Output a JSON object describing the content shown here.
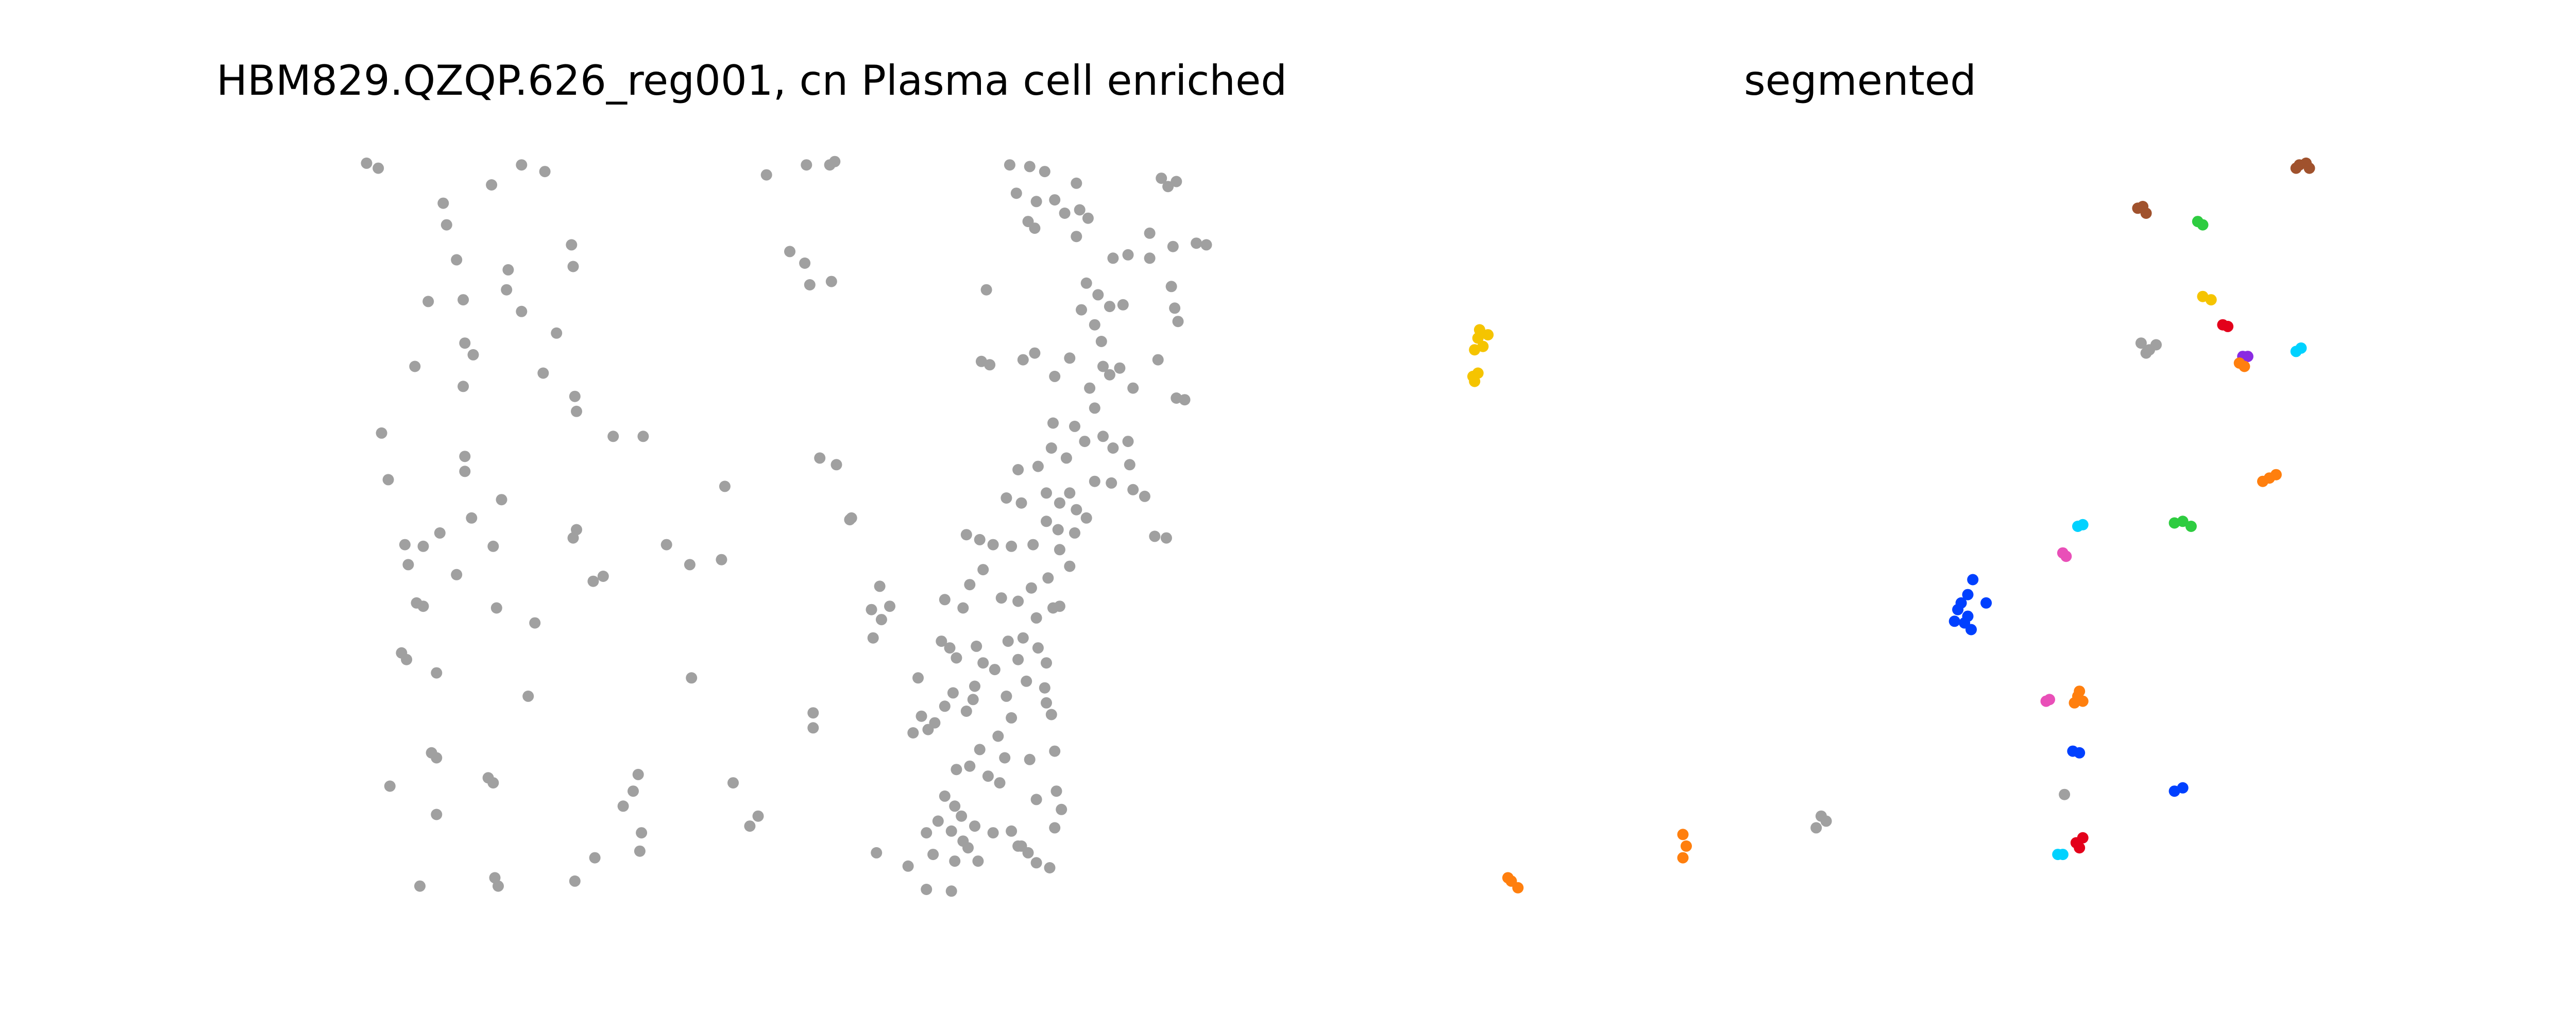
{
  "chart_data": [
    {
      "type": "scatter",
      "title": "HBM829.QZQP.626_reg001, cn Plasma cell enriched",
      "xlabel": "",
      "ylabel": "",
      "axes": "off",
      "grid": false,
      "color": "#a0a0a0",
      "points": [
        [
          220,
          98
        ],
        [
          227,
          101
        ],
        [
          295,
          111
        ],
        [
          313,
          99
        ],
        [
          327,
          103
        ],
        [
          460,
          105
        ],
        [
          484,
          99
        ],
        [
          498,
          99
        ],
        [
          501,
          97
        ],
        [
          266,
          122
        ],
        [
          268,
          135
        ],
        [
          274,
          156
        ],
        [
          305,
          162
        ],
        [
          304,
          174
        ],
        [
          313,
          187
        ],
        [
          343,
          147
        ],
        [
          344,
          160
        ],
        [
          257,
          181
        ],
        [
          278,
          180
        ],
        [
          279,
          206
        ],
        [
          284,
          213
        ],
        [
          278,
          232
        ],
        [
          334,
          200
        ],
        [
          326,
          224
        ],
        [
          345,
          238
        ],
        [
          346,
          247
        ],
        [
          249,
          220
        ],
        [
          229,
          260
        ],
        [
          233,
          288
        ],
        [
          279,
          274
        ],
        [
          279,
          283
        ],
        [
          301,
          300
        ],
        [
          264,
          320
        ],
        [
          243,
          327
        ],
        [
          245,
          339
        ],
        [
          254,
          328
        ],
        [
          274,
          345
        ],
        [
          283,
          311
        ],
        [
          296,
          328
        ],
        [
          346,
          318
        ],
        [
          344,
          323
        ],
        [
          362,
          346
        ],
        [
          356,
          349
        ],
        [
          368,
          262
        ],
        [
          386,
          262
        ],
        [
          250,
          362
        ],
        [
          254,
          364
        ],
        [
          298,
          365
        ],
        [
          321,
          374
        ],
        [
          241,
          392
        ],
        [
          244,
          396
        ],
        [
          262,
          404
        ],
        [
          317,
          418
        ],
        [
          415,
          407
        ],
        [
          433,
          336
        ],
        [
          414,
          339
        ],
        [
          400,
          327
        ],
        [
          435,
          292
        ],
        [
          474,
          151
        ],
        [
          483,
          158
        ],
        [
          486,
          171
        ],
        [
          499,
          169
        ],
        [
          592,
          174
        ],
        [
          492,
          275
        ],
        [
          502,
          279
        ],
        [
          511,
          311
        ],
        [
          488,
          428
        ],
        [
          488,
          437
        ],
        [
          259,
          452
        ],
        [
          262,
          455
        ],
        [
          234,
          472
        ],
        [
          262,
          489
        ],
        [
          293,
          467
        ],
        [
          296,
          470
        ],
        [
          383,
          465
        ],
        [
          380,
          475
        ],
        [
          374,
          484
        ],
        [
          385,
          500
        ],
        [
          384,
          511
        ],
        [
          357,
          515
        ],
        [
          345,
          529
        ],
        [
          297,
          527
        ],
        [
          299,
          532
        ],
        [
          252,
          532
        ],
        [
          455,
          490
        ],
        [
          450,
          496
        ],
        [
          440,
          470
        ],
        [
          526,
          512
        ],
        [
          545,
          520
        ],
        [
          571,
          535
        ],
        [
          606,
          99
        ],
        [
          618,
          100
        ],
        [
          627,
          103
        ],
        [
          646,
          110
        ],
        [
          610,
          116
        ],
        [
          622,
          121
        ],
        [
          633,
          120
        ],
        [
          617,
          133
        ],
        [
          621,
          137
        ],
        [
          639,
          128
        ],
        [
          648,
          126
        ],
        [
          653,
          131
        ],
        [
          697,
          107
        ],
        [
          701,
          112
        ],
        [
          706,
          109
        ],
        [
          646,
          142
        ],
        [
          690,
          140
        ],
        [
          668,
          155
        ],
        [
          677,
          153
        ],
        [
          652,
          170
        ],
        [
          659,
          177
        ],
        [
          666,
          184
        ],
        [
          674,
          183
        ],
        [
          690,
          155
        ],
        [
          704,
          148
        ],
        [
          718,
          146
        ],
        [
          724,
          147
        ],
        [
          703,
          172
        ],
        [
          705,
          185
        ],
        [
          707,
          193
        ],
        [
          649,
          186
        ],
        [
          657,
          195
        ],
        [
          661,
          205
        ],
        [
          621,
          212
        ],
        [
          614,
          216
        ],
        [
          589,
          217
        ],
        [
          594,
          219
        ],
        [
          642,
          215
        ],
        [
          662,
          220
        ],
        [
          666,
          225
        ],
        [
          672,
          221
        ],
        [
          695,
          216
        ],
        [
          680,
          233
        ],
        [
          706,
          239
        ],
        [
          711,
          240
        ],
        [
          633,
          226
        ],
        [
          654,
          233
        ],
        [
          657,
          245
        ],
        [
          645,
          256
        ],
        [
          651,
          265
        ],
        [
          662,
          262
        ],
        [
          668,
          269
        ],
        [
          677,
          265
        ],
        [
          678,
          279
        ],
        [
          632,
          254
        ],
        [
          631,
          269
        ],
        [
          640,
          275
        ],
        [
          623,
          280
        ],
        [
          611,
          282
        ],
        [
          604,
          299
        ],
        [
          613,
          302
        ],
        [
          628,
          296
        ],
        [
          636,
          302
        ],
        [
          646,
          306
        ],
        [
          652,
          311
        ],
        [
          645,
          320
        ],
        [
          635,
          318
        ],
        [
          628,
          313
        ],
        [
          642,
          296
        ],
        [
          657,
          289
        ],
        [
          667,
          290
        ],
        [
          680,
          294
        ],
        [
          687,
          298
        ],
        [
          693,
          322
        ],
        [
          700,
          323
        ],
        [
          510,
          312
        ],
        [
          580,
          321
        ],
        [
          588,
          324
        ],
        [
          596,
          327
        ],
        [
          607,
          328
        ],
        [
          620,
          327
        ],
        [
          636,
          330
        ],
        [
          642,
          340
        ],
        [
          629,
          347
        ],
        [
          619,
          353
        ],
        [
          611,
          361
        ],
        [
          601,
          359
        ],
        [
          590,
          342
        ],
        [
          582,
          351
        ],
        [
          578,
          365
        ],
        [
          567,
          360
        ],
        [
          523,
          366
        ],
        [
          529,
          372
        ],
        [
          534,
          364
        ],
        [
          528,
          352
        ],
        [
          524,
          383
        ],
        [
          551,
          407
        ],
        [
          565,
          385
        ],
        [
          570,
          389
        ],
        [
          574,
          395
        ],
        [
          586,
          388
        ],
        [
          590,
          398
        ],
        [
          597,
          402
        ],
        [
          605,
          385
        ],
        [
          611,
          396
        ],
        [
          614,
          383
        ],
        [
          622,
          371
        ],
        [
          632,
          365
        ],
        [
          636,
          364
        ],
        [
          623,
          389
        ],
        [
          628,
          398
        ],
        [
          616,
          409
        ],
        [
          627,
          413
        ],
        [
          628,
          422
        ],
        [
          631,
          429
        ],
        [
          585,
          412
        ],
        [
          584,
          420
        ],
        [
          580,
          427
        ],
        [
          572,
          416
        ],
        [
          567,
          424
        ],
        [
          561,
          434
        ],
        [
          557,
          438
        ],
        [
          548,
          440
        ],
        [
          553,
          430
        ],
        [
          604,
          418
        ],
        [
          607,
          431
        ],
        [
          599,
          442
        ],
        [
          588,
          450
        ],
        [
          593,
          466
        ],
        [
          600,
          470
        ],
        [
          582,
          460
        ],
        [
          574,
          462
        ],
        [
          567,
          478
        ],
        [
          573,
          484
        ],
        [
          577,
          490
        ],
        [
          585,
          496
        ],
        [
          563,
          493
        ],
        [
          571,
          499
        ],
        [
          578,
          505
        ],
        [
          596,
          500
        ],
        [
          607,
          499
        ],
        [
          611,
          508
        ],
        [
          617,
          512
        ],
        [
          622,
          518
        ],
        [
          630,
          521
        ],
        [
          634,
          475
        ],
        [
          637,
          486
        ],
        [
          633,
          497
        ],
        [
          622,
          480
        ],
        [
          603,
          455
        ],
        [
          556,
          500
        ],
        [
          560,
          513
        ],
        [
          573,
          517
        ],
        [
          581,
          509
        ],
        [
          587,
          517
        ],
        [
          633,
          451
        ],
        [
          618,
          456
        ],
        [
          556,
          534
        ],
        [
          613,
          508
        ]
      ]
    },
    {
      "type": "scatter",
      "title": "segmented",
      "xlabel": "",
      "ylabel": "",
      "axes": "off",
      "grid": false,
      "series": [
        {
          "color": "#f5c400",
          "points": [
            [
              887,
              203
            ],
            [
              890,
              208
            ],
            [
              893,
              201
            ],
            [
              885,
              210
            ],
            [
              888,
              198
            ],
            [
              884,
              226
            ],
            [
              887,
              224
            ],
            [
              885,
              229
            ]
          ]
        },
        {
          "color": "#f5c400",
          "points": [
            [
              1322,
              178
            ],
            [
              1327,
              180
            ]
          ]
        },
        {
          "color": "#a0522d",
          "points": [
            [
              1283,
              125
            ],
            [
              1288,
              128
            ],
            [
              1286,
              124
            ],
            [
              1380,
              99
            ],
            [
              1384,
              98
            ],
            [
              1386,
              101
            ],
            [
              1378,
              101
            ]
          ]
        },
        {
          "color": "#2ecc40",
          "points": [
            [
              1319,
              133
            ],
            [
              1322,
              135
            ],
            [
              1305,
              314
            ],
            [
              1310,
              313
            ],
            [
              1315,
              316
            ]
          ]
        },
        {
          "color": "#e3001b",
          "points": [
            [
              1334,
              195
            ],
            [
              1337,
              196
            ],
            [
              1246,
              506
            ],
            [
              1250,
              503
            ],
            [
              1248,
              509
            ]
          ]
        },
        {
          "color": "#a0a0a0",
          "points": [
            [
              1285,
              206
            ],
            [
              1290,
              210
            ],
            [
              1294,
              207
            ],
            [
              1288,
              212
            ],
            [
              1239,
              477
            ],
            [
              1093,
              490
            ],
            [
              1090,
              497
            ],
            [
              1096,
              493
            ]
          ]
        },
        {
          "color": "#8a2be2",
          "points": [
            [
              1346,
              214
            ],
            [
              1349,
              214
            ]
          ]
        },
        {
          "color": "#ff7f0e",
          "points": [
            [
              1344,
              218
            ],
            [
              1347,
              220
            ],
            [
              1358,
              289
            ],
            [
              1362,
              287
            ],
            [
              1366,
              285
            ],
            [
              1247,
              418
            ],
            [
              1250,
              421
            ],
            [
              1245,
              422
            ],
            [
              1248,
              415
            ],
            [
              907,
              529
            ],
            [
              911,
              533
            ],
            [
              905,
              527
            ],
            [
              1010,
              501
            ],
            [
              1012,
              508
            ],
            [
              1010,
              515
            ]
          ]
        },
        {
          "color": "#00d2ff",
          "points": [
            [
              1378,
              211
            ],
            [
              1381,
              209
            ],
            [
              1247,
              316
            ],
            [
              1250,
              315
            ],
            [
              1235,
              513
            ],
            [
              1238,
              513
            ]
          ]
        },
        {
          "color": "#e94fb8",
          "points": [
            [
              1238,
              332
            ],
            [
              1240,
              334
            ],
            [
              1228,
              421
            ],
            [
              1230,
              420
            ]
          ]
        },
        {
          "color": "#0040ff",
          "points": [
            [
              1184,
              348
            ],
            [
              1181,
              357
            ],
            [
              1177,
              362
            ],
            [
              1192,
              362
            ],
            [
              1175,
              366
            ],
            [
              1181,
              370
            ],
            [
              1179,
              374
            ],
            [
              1173,
              373
            ],
            [
              1183,
              378
            ],
            [
              1244,
              451
            ],
            [
              1248,
              452
            ],
            [
              1305,
              475
            ],
            [
              1310,
              473
            ]
          ]
        }
      ]
    }
  ]
}
